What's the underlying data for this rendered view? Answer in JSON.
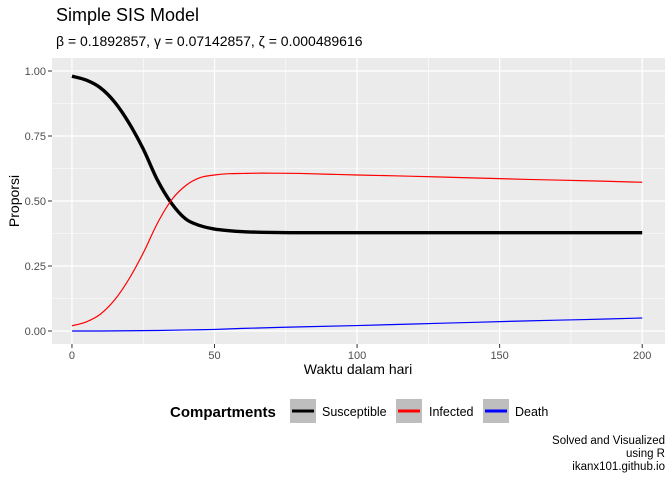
{
  "chart_data": {
    "type": "line",
    "title": "Simple SIS Model",
    "subtitle": "β = 0.1892857,  γ = 0.07142857,  ζ = 0.000489616",
    "xlabel": "Waktu dalam hari",
    "ylabel": "Proporsi",
    "xlim": [
      -7,
      208
    ],
    "ylim": [
      -0.05,
      1.05
    ],
    "x_ticks": [
      0,
      50,
      100,
      150,
      200
    ],
    "x_tick_labels": [
      "0",
      "50",
      "100",
      "150",
      "200"
    ],
    "y_ticks": [
      0,
      0.25,
      0.5,
      0.75,
      1
    ],
    "y_tick_labels": [
      "0.00",
      "0.25",
      "0.50",
      "0.75",
      "1.00"
    ],
    "grid": true,
    "legend": {
      "title": "Compartments",
      "position": "bottom"
    },
    "series": [
      {
        "name": "Susceptible",
        "color": "#000000",
        "x": [
          0,
          5,
          10,
          15,
          20,
          25,
          30,
          35,
          40,
          45,
          50,
          55,
          60,
          65,
          70,
          80,
          90,
          100,
          120,
          140,
          160,
          180,
          200
        ],
        "y": [
          0.98,
          0.965,
          0.935,
          0.88,
          0.8,
          0.7,
          0.58,
          0.49,
          0.43,
          0.405,
          0.392,
          0.386,
          0.382,
          0.38,
          0.379,
          0.378,
          0.378,
          0.378,
          0.378,
          0.378,
          0.378,
          0.378,
          0.378
        ]
      },
      {
        "name": "Infected",
        "color": "#ff0000",
        "x": [
          0,
          5,
          10,
          15,
          20,
          25,
          30,
          35,
          40,
          45,
          50,
          55,
          60,
          65,
          70,
          80,
          90,
          100,
          120,
          140,
          160,
          180,
          200
        ],
        "y": [
          0.02,
          0.035,
          0.065,
          0.12,
          0.2,
          0.3,
          0.415,
          0.505,
          0.56,
          0.59,
          0.6,
          0.605,
          0.606,
          0.607,
          0.607,
          0.606,
          0.603,
          0.6,
          0.595,
          0.589,
          0.583,
          0.578,
          0.572
        ]
      },
      {
        "name": "Death",
        "color": "#0000ff",
        "x": [
          0,
          10,
          20,
          30,
          40,
          50,
          60,
          80,
          100,
          120,
          140,
          160,
          180,
          200
        ],
        "y": [
          0,
          0,
          0.001,
          0.002,
          0.004,
          0.006,
          0.01,
          0.016,
          0.021,
          0.027,
          0.033,
          0.039,
          0.044,
          0.05
        ]
      }
    ]
  },
  "caption": {
    "lines": [
      "Solved and Visualized",
      "using R",
      "ikanx101.github.io"
    ]
  }
}
